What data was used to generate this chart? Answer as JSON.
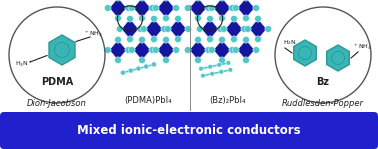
{
  "bg_color": "#e8e8e8",
  "white": "#ffffff",
  "dark_blue": "#1515a0",
  "teal": "#50c8c8",
  "teal_fill": "#3ab5b5",
  "teal_dark": "#2a9898",
  "black": "#222222",
  "banner_color": "#2020cc",
  "banner_text": "Mixed ionic-electronic conductors",
  "banner_text_color": "#ffffff",
  "label_pdma": "PDMA",
  "label_pdmapbi4": "(PDMA)PbI₄",
  "label_bz2pbi4": "(Bz)₂PbI₄",
  "label_bz": "Bz",
  "label_dj": "Dion-Jacobson",
  "label_rp": "Ruddlesden-Popper",
  "fig_width": 3.78,
  "fig_height": 1.49,
  "dpi": 100
}
